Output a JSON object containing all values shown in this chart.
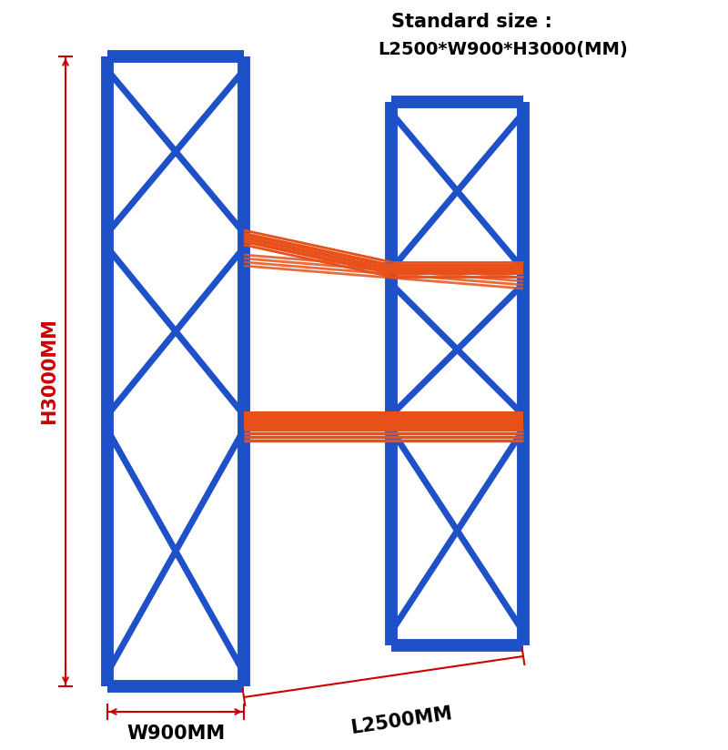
{
  "bg_color": "#ffffff",
  "blue": "#1e50c8",
  "orange": "#e8501a",
  "red_dim": "#cc0000",
  "title_line1": "Standard size :",
  "title_line2": "L2500*W900*H3000(MM)",
  "label_H": "H3000MM",
  "label_W": "W900MM",
  "label_L": "L2500MM",
  "title_fontsize": 14,
  "label_fontsize": 15,
  "label_fontsize_small": 13
}
